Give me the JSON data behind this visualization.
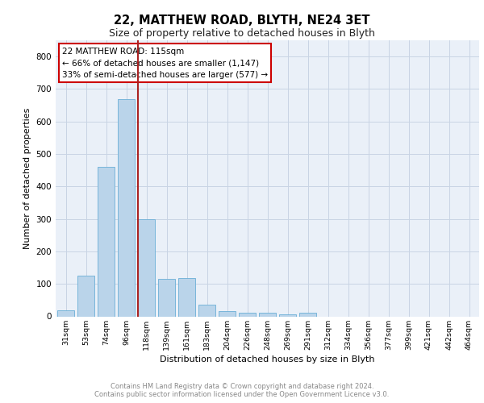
{
  "title1": "22, MATTHEW ROAD, BLYTH, NE24 3ET",
  "title2": "Size of property relative to detached houses in Blyth",
  "xlabel": "Distribution of detached houses by size in Blyth",
  "ylabel": "Number of detached properties",
  "categories": [
    "31sqm",
    "53sqm",
    "74sqm",
    "96sqm",
    "118sqm",
    "139sqm",
    "161sqm",
    "183sqm",
    "204sqm",
    "226sqm",
    "248sqm",
    "269sqm",
    "291sqm",
    "312sqm",
    "334sqm",
    "356sqm",
    "377sqm",
    "399sqm",
    "421sqm",
    "442sqm",
    "464sqm"
  ],
  "values": [
    18,
    125,
    460,
    670,
    300,
    115,
    117,
    35,
    15,
    10,
    10,
    5,
    10,
    0,
    0,
    0,
    0,
    0,
    0,
    0,
    0
  ],
  "bar_color": "#bad4ea",
  "bar_edge_color": "#6aaed6",
  "background_color": "#eaf0f8",
  "grid_color": "#c8d4e4",
  "vline_color": "#aa2222",
  "annotation_title": "22 MATTHEW ROAD: 115sqm",
  "annotation_line1": "← 66% of detached houses are smaller (1,147)",
  "annotation_line2": "33% of semi-detached houses are larger (577) →",
  "annotation_box_color": "#ffffff",
  "annotation_box_edge": "#cc0000",
  "footnote1": "Contains HM Land Registry data © Crown copyright and database right 2024.",
  "footnote2": "Contains public sector information licensed under the Open Government Licence v3.0.",
  "ylim": [
    0,
    850
  ],
  "yticks": [
    0,
    100,
    200,
    300,
    400,
    500,
    600,
    700,
    800
  ],
  "vline_bar_index": 4
}
